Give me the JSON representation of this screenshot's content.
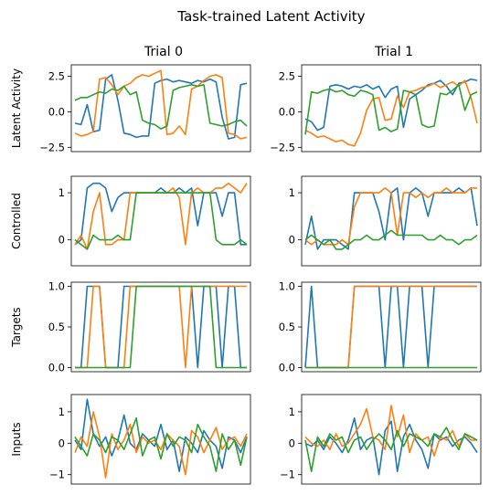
{
  "figure_title": "Task-trained Latent Activity",
  "colors": {
    "series0": "#1f77b4",
    "series1": "#ff7f0e",
    "series2": "#2ca02c"
  },
  "chart_data": {
    "type": "line",
    "grid": false,
    "legend": "none",
    "columns": [
      "Trial 0",
      "Trial 1"
    ],
    "rows": [
      {
        "ylabel": "Latent Activity",
        "ylim": [
          -2.8,
          3.3
        ],
        "yticks": [
          "2.5",
          "0.0",
          "−2.5"
        ],
        "ytick_values": [
          2.5,
          0,
          -2.5
        ],
        "trials": [
          {
            "series": [
              {
                "values": [
                  -0.8,
                  -0.9,
                  0.5,
                  -1.4,
                  -1.3,
                  2.3,
                  2.6,
                  0.8,
                  -1.5,
                  -1.6,
                  -1.8,
                  -1.7,
                  -1.7,
                  2.0,
                  2.2,
                  2.3,
                  2.1,
                  2.2,
                  2.1,
                  2.0,
                  2.2,
                  2.1,
                  2.3,
                  2.1,
                  -0.4,
                  -1.9,
                  -1.8,
                  1.9,
                  2.0
                ]
              },
              {
                "values": [
                  -1.5,
                  -1.7,
                  -1.6,
                  -1.4,
                  2.3,
                  2.4,
                  1.9,
                  1.2,
                  1.8,
                  2.0,
                  2.4,
                  2.6,
                  2.5,
                  2.7,
                  2.9,
                  -1.6,
                  -1.5,
                  -1.0,
                  -1.6,
                  1.6,
                  1.8,
                  2.2,
                  2.5,
                  2.6,
                  2.4,
                  -1.5,
                  -1.6,
                  -1.9,
                  -1.8
                ]
              },
              {
                "values": [
                  0.8,
                  1.0,
                  1.0,
                  1.2,
                  1.4,
                  1.3,
                  1.6,
                  1.5,
                  1.8,
                  1.2,
                  1.4,
                  -0.6,
                  -0.8,
                  -0.9,
                  -1.2,
                  -1.0,
                  1.5,
                  1.7,
                  1.8,
                  1.9,
                  1.8,
                  1.9,
                  -0.8,
                  -0.9,
                  -1.0,
                  -0.9,
                  -0.7,
                  -0.6,
                  -1.0
                ]
              }
            ]
          },
          {
            "series": [
              {
                "values": [
                  -0.5,
                  -0.7,
                  -1.3,
                  -1.1,
                  1.8,
                  1.9,
                  1.8,
                  1.6,
                  1.8,
                  1.7,
                  1.9,
                  1.6,
                  1.8,
                  1.0,
                  1.6,
                  1.8,
                  -1.1,
                  0.9,
                  1.2,
                  1.5,
                  1.9,
                  2.0,
                  2.2,
                  1.8,
                  1.2,
                  2.0,
                  2.1,
                  2.3,
                  2.2
                ]
              },
              {
                "values": [
                  -1.3,
                  -1.5,
                  -1.8,
                  -1.7,
                  -1.9,
                  -2.1,
                  -2.0,
                  -2.3,
                  -2.4,
                  -1.5,
                  0.1,
                  0.9,
                  1.0,
                  -0.6,
                  -0.5,
                  1.1,
                  0.3,
                  1.4,
                  1.5,
                  1.7,
                  1.8,
                  2.0,
                  1.7,
                  1.9,
                  2.1,
                  1.8,
                  2.2,
                  1.0,
                  -0.8
                ]
              },
              {
                "values": [
                  -1.6,
                  1.4,
                  1.3,
                  1.5,
                  1.6,
                  1.4,
                  1.5,
                  1.2,
                  1.1,
                  1.5,
                  1.4,
                  1.2,
                  -1.3,
                  -1.1,
                  -1.4,
                  -1.2,
                  1.5,
                  1.4,
                  1.2,
                  -0.9,
                  -1.1,
                  -1.0,
                  1.3,
                  1.2,
                  1.5,
                  1.9,
                  0.1,
                  1.2,
                  1.4
                ]
              }
            ]
          }
        ]
      },
      {
        "ylabel": "Controlled",
        "ylim": [
          -0.55,
          1.35
        ],
        "yticks": [
          "1",
          "0"
        ],
        "ytick_values": [
          1,
          0
        ],
        "trials": [
          {
            "series": [
              {
                "values": [
                  -0.1,
                  0.0,
                  1.1,
                  1.2,
                  1.2,
                  1.1,
                  0.6,
                  0.9,
                  1.0,
                  1.0,
                  1.0,
                  1.0,
                  1.0,
                  1.0,
                  1.1,
                  1.0,
                  1.0,
                  1.1,
                  1.0,
                  1.1,
                  0.3,
                  1.0,
                  1.0,
                  1.0,
                  0.5,
                  1.0,
                  1.0,
                  -0.1,
                  -0.1
                ]
              },
              {
                "values": [
                  -0.1,
                  0.1,
                  -0.2,
                  0.6,
                  1.0,
                  -0.1,
                  -0.1,
                  0.0,
                  0.0,
                  1.0,
                  1.0,
                  1.0,
                  1.0,
                  1.0,
                  1.0,
                  1.0,
                  1.1,
                  0.9,
                  -0.1,
                  1.0,
                  1.1,
                  1.0,
                  1.0,
                  1.1,
                  1.1,
                  1.2,
                  1.1,
                  1.0,
                  1.2
                ]
              },
              {
                "values": [
                  0.0,
                  -0.1,
                  -0.2,
                  0.1,
                  0.0,
                  0.0,
                  0.0,
                  0.1,
                  0.0,
                  0.0,
                  1.0,
                  1.0,
                  1.0,
                  1.0,
                  1.0,
                  1.0,
                  1.0,
                  1.0,
                  1.0,
                  1.0,
                  1.0,
                  1.0,
                  1.0,
                  0.0,
                  -0.1,
                  -0.1,
                  -0.1,
                  0.0,
                  -0.1
                ]
              }
            ]
          },
          {
            "series": [
              {
                "values": [
                  -0.1,
                  0.5,
                  -0.2,
                  0.0,
                  0.0,
                  0.0,
                  -0.1,
                  -0.2,
                  1.0,
                  1.0,
                  1.0,
                  1.0,
                  0.6,
                  0.0,
                  1.0,
                  1.1,
                  0.0,
                  1.0,
                  1.1,
                  1.0,
                  0.5,
                  1.0,
                  1.0,
                  1.0,
                  1.0,
                  1.1,
                  1.0,
                  1.1,
                  0.3
                ]
              },
              {
                "values": [
                  0.0,
                  -0.1,
                  0.0,
                  -0.1,
                  -0.1,
                  -0.1,
                  0.0,
                  -0.1,
                  0.7,
                  1.0,
                  1.0,
                  1.0,
                  1.0,
                  1.1,
                  1.0,
                  0.1,
                  1.0,
                  1.0,
                  0.9,
                  1.0,
                  0.9,
                  1.0,
                  1.0,
                  1.1,
                  1.0,
                  1.0,
                  1.0,
                  1.1,
                  1.1
                ]
              },
              {
                "values": [
                  0.0,
                  0.1,
                  0.0,
                  -0.1,
                  0.0,
                  -0.2,
                  -0.2,
                  -0.1,
                  0.0,
                  0.0,
                  0.1,
                  0.0,
                  0.0,
                  0.1,
                  0.2,
                  0.1,
                  0.1,
                  0.1,
                  0.1,
                  0.1,
                  0.0,
                  0.0,
                  0.1,
                  0.0,
                  0.0,
                  -0.1,
                  0.0,
                  0.0,
                  0.1
                ]
              }
            ]
          }
        ]
      },
      {
        "ylabel": "Targets",
        "ylim": [
          -0.05,
          1.05
        ],
        "yticks": [
          "1.0",
          "0.5",
          "0.0"
        ],
        "ytick_values": [
          1,
          0.5,
          0
        ],
        "trials": [
          {
            "series": [
              {
                "values": [
                  0,
                  0,
                  1,
                  1,
                  1,
                  0,
                  0,
                  0,
                  1,
                  1,
                  1,
                  1,
                  1,
                  1,
                  1,
                  1,
                  1,
                  1,
                  1,
                  1,
                  0,
                  1,
                  1,
                  1,
                  0,
                  1,
                  1,
                  0,
                  0
                ]
              },
              {
                "values": [
                  0,
                  0,
                  0,
                  1,
                  1,
                  0,
                  0,
                  0,
                  0,
                  1,
                  1,
                  1,
                  1,
                  1,
                  1,
                  1,
                  1,
                  1,
                  0,
                  1,
                  1,
                  1,
                  1,
                  1,
                  1,
                  1,
                  1,
                  1,
                  1
                ]
              },
              {
                "values": [
                  0,
                  0,
                  0,
                  0,
                  0,
                  0,
                  0,
                  0,
                  0,
                  0,
                  1,
                  1,
                  1,
                  1,
                  1,
                  1,
                  1,
                  1,
                  1,
                  1,
                  1,
                  1,
                  1,
                  0,
                  0,
                  0,
                  0,
                  0,
                  0
                ]
              }
            ]
          },
          {
            "series": [
              {
                "values": [
                  0,
                  1,
                  0,
                  0,
                  0,
                  0,
                  0,
                  0,
                  1,
                  1,
                  1,
                  1,
                  1,
                  0,
                  1,
                  1,
                  0,
                  1,
                  1,
                  1,
                  0,
                  1,
                  1,
                  1,
                  1,
                  1,
                  1,
                  1,
                  1
                ]
              },
              {
                "values": [
                  0,
                  0,
                  0,
                  0,
                  0,
                  0,
                  0,
                  0,
                  1,
                  1,
                  1,
                  1,
                  1,
                  1,
                  1,
                  1,
                  1,
                  1,
                  1,
                  1,
                  1,
                  1,
                  1,
                  1,
                  1,
                  1,
                  1,
                  1,
                  1
                ]
              },
              {
                "values": [
                  0,
                  0,
                  0,
                  0,
                  0,
                  0,
                  0,
                  0,
                  0,
                  0,
                  0,
                  0,
                  0,
                  0,
                  0,
                  0,
                  0,
                  0,
                  0,
                  0,
                  0,
                  0,
                  0,
                  0,
                  0,
                  0,
                  0,
                  0,
                  0
                ]
              }
            ]
          }
        ]
      },
      {
        "ylabel": "Inputs",
        "ylim": [
          -1.3,
          1.55
        ],
        "yticks": [
          "1",
          "0",
          "−1"
        ],
        "ytick_values": [
          1,
          0,
          -1
        ],
        "trials": [
          {
            "series": [
              {
                "values": [
                  0.1,
                  -0.2,
                  1.4,
                  0.3,
                  -0.1,
                  0.2,
                  -0.4,
                  0.1,
                  0.9,
                  0.0,
                  -0.2,
                  0.3,
                  0.1,
                  -0.1,
                  0.6,
                  -0.2,
                  0.1,
                  -0.9,
                  0.2,
                  0.0,
                  -0.3,
                  0.4,
                  0.1,
                  -0.1,
                  -0.8,
                  0.2,
                  0.1,
                  -0.3,
                  0.2
                ]
              },
              {
                "values": [
                  -0.3,
                  0.2,
                  -0.1,
                  1.0,
                  0.2,
                  -1.1,
                  0.3,
                  -0.2,
                  0.1,
                  0.6,
                  -0.3,
                  0.2,
                  0.0,
                  0.1,
                  -0.2,
                  0.3,
                  0.1,
                  -0.1,
                  -1.0,
                  0.4,
                  0.2,
                  -0.3,
                  0.1,
                  0.5,
                  -0.2,
                  0.1,
                  0.2,
                  -0.1,
                  0.3
                ]
              },
              {
                "values": [
                  0.2,
                  -0.1,
                  -0.4,
                  0.3,
                  0.1,
                  -0.3,
                  0.2,
                  0.1,
                  -0.2,
                  0.3,
                  0.8,
                  -0.4,
                  0.1,
                  0.2,
                  -0.5,
                  0.3,
                  -0.1,
                  0.2,
                  0.1,
                  -0.3,
                  0.6,
                  0.2,
                  -0.1,
                  -0.9,
                  0.3,
                  -0.2,
                  0.1,
                  -0.7,
                  0.2
                ]
              }
            ]
          },
          {
            "series": [
              {
                "values": [
                  0.0,
                  -0.1,
                  0.1,
                  -0.2,
                  0.2,
                  0.0,
                  -0.3,
                  0.1,
                  0.8,
                  -0.2,
                  0.1,
                  0.2,
                  -1.0,
                  0.4,
                  0.7,
                  -0.9,
                  0.2,
                  0.6,
                  0.1,
                  -0.2,
                  -0.8,
                  0.3,
                  0.1,
                  0.2,
                  -0.1,
                  0.1,
                  0.2,
                  0.0,
                  -0.3
                ]
              },
              {
                "values": [
                  0.2,
                  0.0,
                  -0.1,
                  0.1,
                  -0.2,
                  0.3,
                  -0.1,
                  0.0,
                  0.3,
                  0.6,
                  1.1,
                  0.2,
                  0.1,
                  -0.2,
                  1.2,
                  0.2,
                  0.9,
                  -0.3,
                  0.3,
                  0.1,
                  0.2,
                  -0.4,
                  0.2,
                  0.1,
                  0.4,
                  -0.1,
                  0.3,
                  0.1,
                  0.1
                ]
              },
              {
                "values": [
                  0.1,
                  -0.9,
                  0.2,
                  -0.1,
                  0.3,
                  0.1,
                  0.2,
                  -0.3,
                  0.1,
                  0.2,
                  -0.2,
                  0.1,
                  0.3,
                  0.1,
                  -0.2,
                  0.4,
                  -0.1,
                  0.3,
                  0.2,
                  0.1,
                  -0.1,
                  0.3,
                  0.2,
                  0.5,
                  0.1,
                  -0.2,
                  0.3,
                  0.2,
                  0.1
                ]
              }
            ]
          }
        ]
      }
    ]
  }
}
